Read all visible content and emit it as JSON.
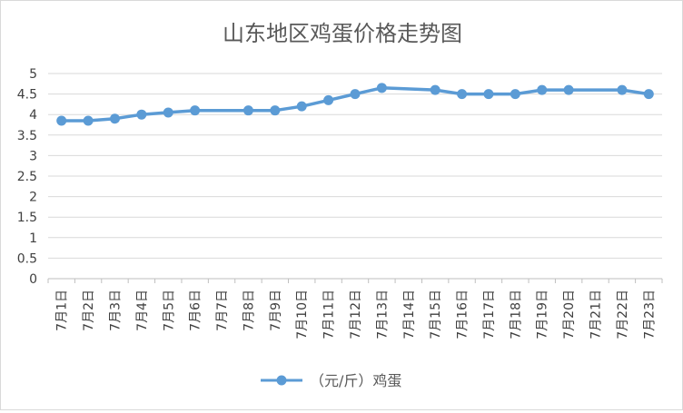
{
  "chart_data": {
    "type": "line",
    "title": "山东地区鸡蛋价格走势图",
    "xlabel": "",
    "ylabel": "",
    "categories": [
      "7月1日",
      "7月2日",
      "7月3日",
      "7月4日",
      "7月5日",
      "7月6日",
      "7月7日",
      "7月8日",
      "7月9日",
      "7月10日",
      "7月11日",
      "7月12日",
      "7月13日",
      "7月14日",
      "7月15日",
      "7月16日",
      "7月17日",
      "7月18日",
      "7月19日",
      "7月20日",
      "7月21日",
      "7月22日",
      "7月23日"
    ],
    "series": [
      {
        "name": "（元/斤）鸡蛋",
        "values": [
          3.85,
          3.85,
          3.9,
          4.0,
          4.05,
          4.1,
          null,
          4.1,
          4.1,
          4.2,
          4.35,
          4.5,
          4.65,
          null,
          4.6,
          4.5,
          4.5,
          4.5,
          4.6,
          4.6,
          null,
          4.6,
          4.5
        ],
        "color": "#5b9bd5"
      }
    ],
    "ylim": [
      0,
      5
    ],
    "yticks": [
      "0",
      "0.5",
      "1",
      "1.5",
      "2",
      "2.5",
      "3",
      "3.5",
      "4",
      "4.5",
      "5"
    ],
    "grid": true,
    "legend": "bottom"
  }
}
